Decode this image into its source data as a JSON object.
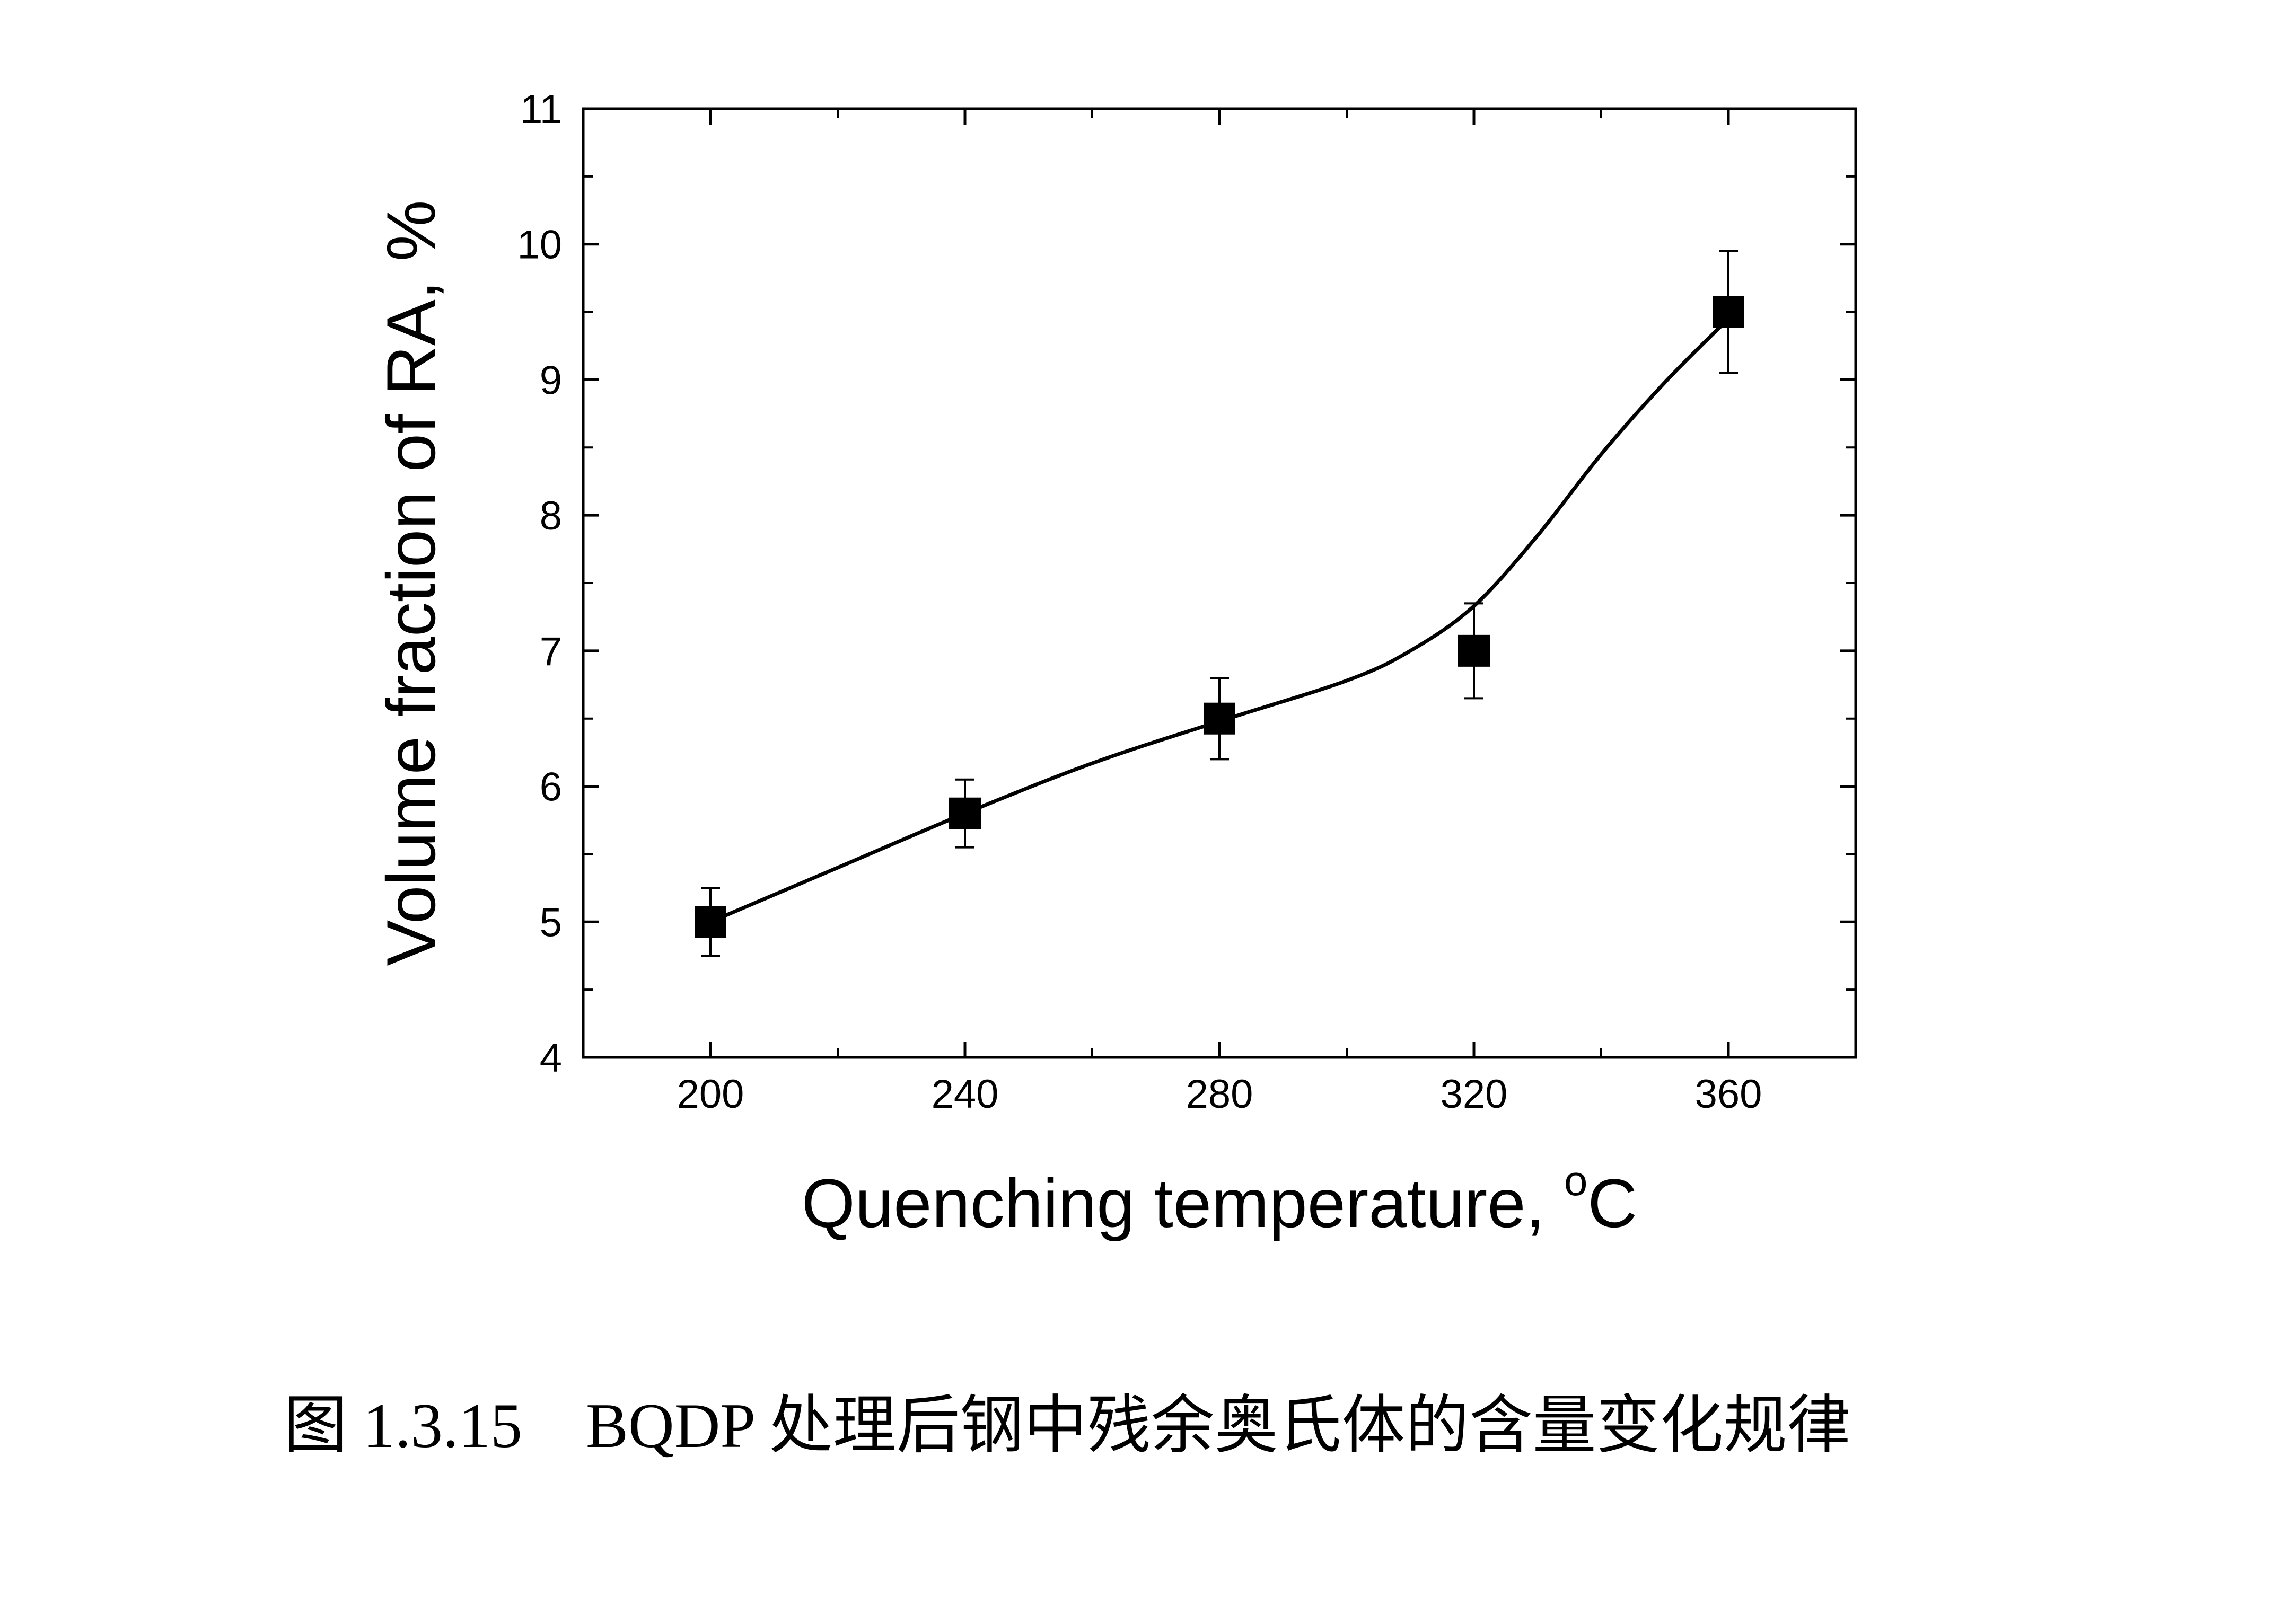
{
  "chart_data": {
    "type": "scatter",
    "xlabel": "Quenching temperature, ",
    "xlabel_unit_sup": "o",
    "xlabel_unit": "C",
    "ylabel": "Volume fraction of RA, %",
    "xlim": [
      180,
      380
    ],
    "ylim": [
      4,
      11
    ],
    "x_ticks": [
      200,
      240,
      280,
      320,
      360
    ],
    "y_ticks": [
      4,
      5,
      6,
      7,
      8,
      9,
      10,
      11
    ],
    "x": [
      200,
      240,
      280,
      320,
      360
    ],
    "y": [
      5.0,
      5.8,
      6.5,
      7.0,
      9.5
    ],
    "error": [
      0.25,
      0.25,
      0.3,
      0.35,
      0.45
    ],
    "fit_curve": {
      "x": [
        200,
        220,
        240,
        260,
        280,
        300,
        310,
        320,
        330,
        340,
        350,
        360
      ],
      "y": [
        5.0,
        5.4,
        5.8,
        6.17,
        6.48,
        6.78,
        7.0,
        7.33,
        7.85,
        8.45,
        8.98,
        9.45
      ]
    },
    "grid": false,
    "legend": "none",
    "colors": {
      "marker": "#000000",
      "line": "#000000",
      "axis": "#000000"
    }
  },
  "caption": {
    "text": "图 1.3.15　BQDP 处理后钢中残余奥氏体的含量变化规律"
  }
}
